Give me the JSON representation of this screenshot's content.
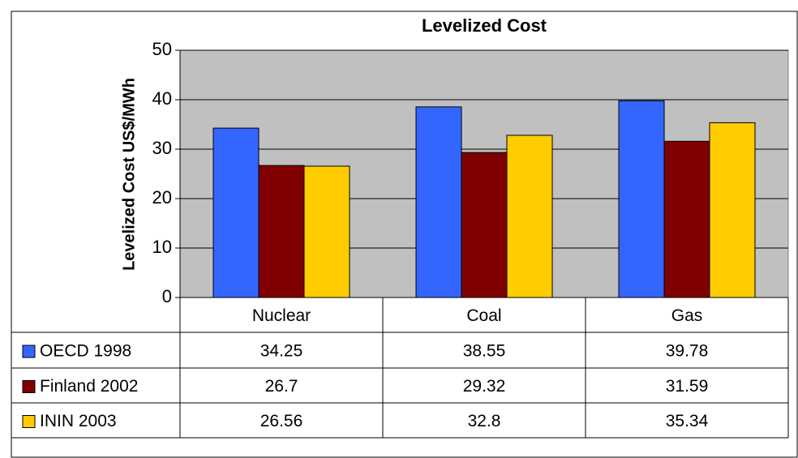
{
  "chart_data": {
    "type": "bar",
    "title": "Levelized Cost",
    "y_label": "Levelized Cost US$/MWh",
    "categories": [
      "Nuclear",
      "Coal",
      "Gas"
    ],
    "series": [
      {
        "name": "OECD 1998",
        "color": "#3366ff",
        "values": [
          34.25,
          38.55,
          39.78
        ]
      },
      {
        "name": "Finland 2002",
        "color": "#800000",
        "values": [
          26.7,
          29.32,
          31.59
        ]
      },
      {
        "name": "ININ 2003",
        "color": "#ffcc00",
        "values": [
          26.56,
          32.8,
          35.34
        ]
      }
    ],
    "ylim": [
      0,
      50
    ],
    "yticks": [
      0,
      10,
      20,
      30,
      40,
      50
    ],
    "grid": true,
    "plot_background": "#c0c0c0"
  }
}
